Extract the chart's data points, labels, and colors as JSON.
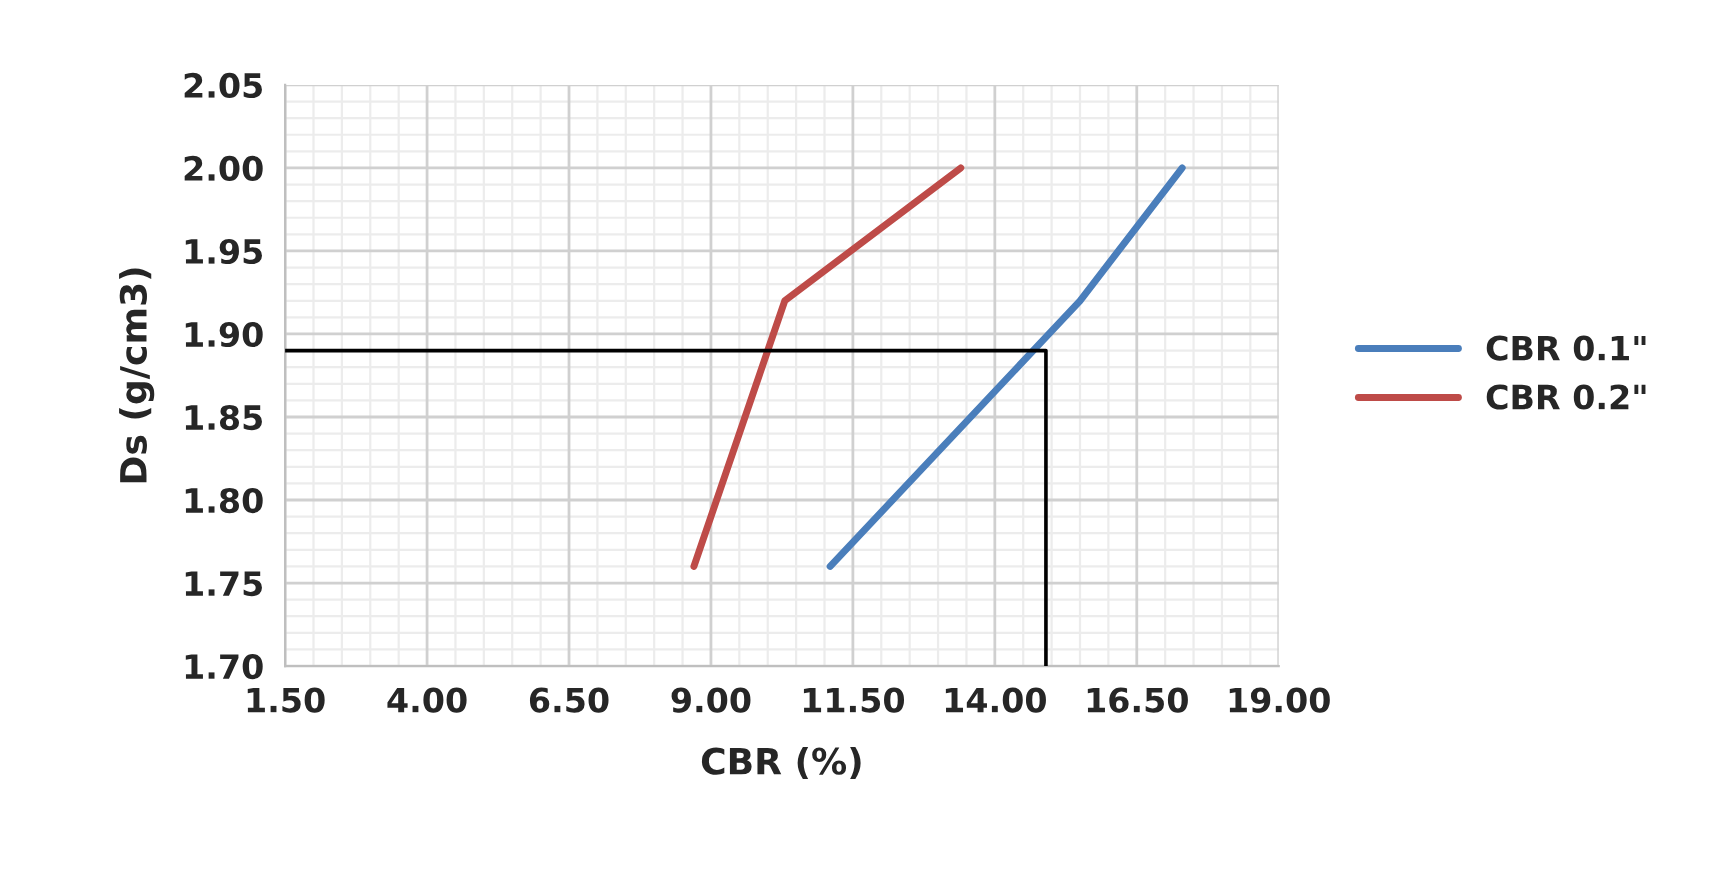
{
  "chart_data": {
    "type": "line",
    "xlabel": "CBR (%)",
    "ylabel": "Ds (g/cm3)",
    "xlim": [
      1.5,
      19.0
    ],
    "xticks": [
      {
        "value": 1.5,
        "label": "1.50"
      },
      {
        "value": 4.0,
        "label": "4.00"
      },
      {
        "value": 6.5,
        "label": "6.50"
      },
      {
        "value": 9.0,
        "label": "9.00"
      },
      {
        "value": 11.5,
        "label": "11.50"
      },
      {
        "value": 14.0,
        "label": "14.00"
      },
      {
        "value": 16.5,
        "label": "16.50"
      },
      {
        "value": 19.0,
        "label": "19.00"
      }
    ],
    "ylim": [
      1.7,
      2.05
    ],
    "yticks": [
      {
        "value": 1.7,
        "label": "1.70"
      },
      {
        "value": 1.75,
        "label": "1.75"
      },
      {
        "value": 1.8,
        "label": "1.80"
      },
      {
        "value": 1.85,
        "label": "1.85"
      },
      {
        "value": 1.9,
        "label": "1.90"
      },
      {
        "value": 1.95,
        "label": "1.95"
      },
      {
        "value": 2.0,
        "label": "2.00"
      },
      {
        "value": 2.05,
        "label": "2.05"
      }
    ],
    "grid": true,
    "legend": "right",
    "marker": "none",
    "line_style": "solid",
    "series": [
      {
        "name": "CBR 0.1\"",
        "color": "#4a7ebb",
        "x": [
          11.1,
          15.5,
          17.3
        ],
        "values": [
          1.76,
          1.92,
          2.0
        ]
      },
      {
        "name": "CBR 0.2\"",
        "color": "#be4b48",
        "x": [
          8.7,
          10.3,
          13.4
        ],
        "values": [
          1.76,
          1.92,
          2.0
        ]
      },
      {
        "color": "#000000",
        "x": [
          1.5,
          14.9,
          14.9
        ],
        "values": [
          1.89,
          1.89,
          1.7
        ]
      }
    ]
  }
}
